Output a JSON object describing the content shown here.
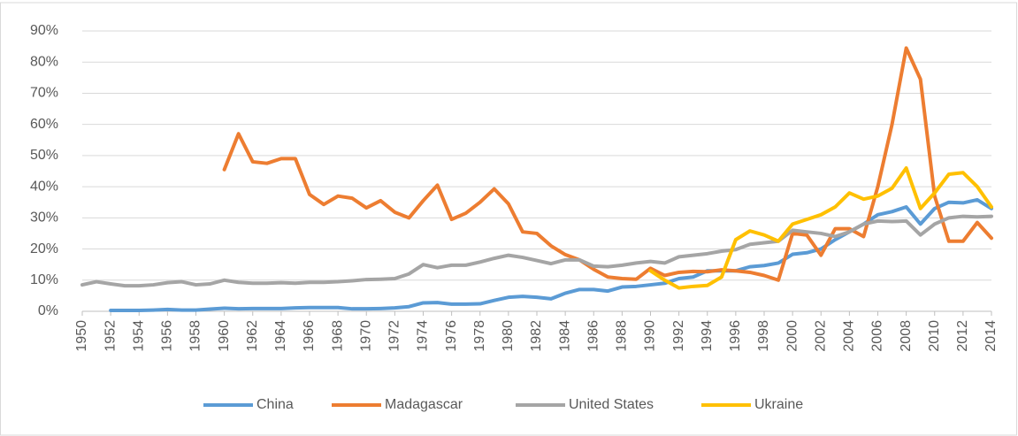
{
  "chart_data": {
    "type": "line",
    "x": [
      1950,
      1951,
      1952,
      1953,
      1954,
      1955,
      1956,
      1957,
      1958,
      1959,
      1960,
      1961,
      1962,
      1963,
      1964,
      1965,
      1966,
      1967,
      1968,
      1969,
      1970,
      1971,
      1972,
      1973,
      1974,
      1975,
      1976,
      1977,
      1978,
      1979,
      1980,
      1981,
      1982,
      1983,
      1984,
      1985,
      1986,
      1987,
      1988,
      1989,
      1990,
      1991,
      1992,
      1993,
      1994,
      1995,
      1996,
      1997,
      1998,
      1999,
      2000,
      2001,
      2002,
      2003,
      2004,
      2005,
      2006,
      2007,
      2008,
      2009,
      2010,
      2011,
      2012,
      2013,
      2014
    ],
    "xlim": [
      1950,
      2014
    ],
    "xticks": [
      1950,
      1952,
      1954,
      1956,
      1958,
      1960,
      1962,
      1964,
      1966,
      1968,
      1970,
      1972,
      1974,
      1976,
      1978,
      1980,
      1982,
      1984,
      1986,
      1988,
      1990,
      1992,
      1994,
      1996,
      1998,
      2000,
      2002,
      2004,
      2006,
      2008,
      2010,
      2012,
      2014
    ],
    "ylim": [
      0,
      90
    ],
    "yticks": [
      {
        "value": 0,
        "label": "0%"
      },
      {
        "value": 10,
        "label": "10%"
      },
      {
        "value": 20,
        "label": "20%"
      },
      {
        "value": 30,
        "label": "30%"
      },
      {
        "value": 40,
        "label": "40%"
      },
      {
        "value": 50,
        "label": "50%"
      },
      {
        "value": 60,
        "label": "60%"
      },
      {
        "value": 70,
        "label": "70%"
      },
      {
        "value": 80,
        "label": "80%"
      },
      {
        "value": 90,
        "label": "90%"
      }
    ],
    "grid": true,
    "legend": "bottom",
    "series": [
      {
        "name": "China",
        "color": "#5b9bd5",
        "values": [
          null,
          null,
          0.3,
          0.3,
          0.3,
          0.4,
          0.6,
          0.4,
          0.4,
          0.7,
          1,
          0.8,
          0.9,
          0.9,
          0.9,
          1.1,
          1.2,
          1.2,
          1.2,
          0.8,
          0.8,
          0.9,
          1.1,
          1.5,
          2.7,
          2.8,
          2.3,
          2.3,
          2.4,
          3.5,
          4.5,
          4.8,
          4.5,
          4,
          5.8,
          7,
          7,
          6.5,
          7.8,
          8,
          8.5,
          9,
          10.5,
          11,
          13,
          13,
          13,
          14.3,
          14.7,
          15.5,
          18.3,
          18.8,
          20,
          23,
          25.5,
          28,
          31,
          32,
          33.5,
          28,
          33,
          35,
          34.8,
          35.8,
          33
        ]
      },
      {
        "name": "Madagascar",
        "color": "#ed7d31",
        "values": [
          null,
          null,
          null,
          null,
          null,
          null,
          null,
          null,
          null,
          null,
          45.5,
          57,
          48,
          47.5,
          49,
          49,
          37.5,
          34.3,
          37,
          36.3,
          33.2,
          35.5,
          31.8,
          30,
          35.5,
          40.5,
          29.5,
          31.5,
          35,
          39.3,
          34.5,
          25.5,
          25,
          21,
          18.2,
          16.5,
          13.5,
          11,
          10.5,
          10.3,
          13.8,
          11.5,
          12.5,
          12.8,
          12.7,
          13.3,
          13,
          12.5,
          11.5,
          10,
          25,
          24.5,
          18,
          26.5,
          26.5,
          24,
          40,
          60,
          84.5,
          74.5,
          37,
          22.5,
          22.5,
          28.5,
          23.5
        ]
      },
      {
        "name": "United States",
        "color": "#a5a5a5",
        "values": [
          8.5,
          9.5,
          8.8,
          8.2,
          8.2,
          8.5,
          9.2,
          9.5,
          8.5,
          8.8,
          10,
          9.3,
          9,
          9,
          9.2,
          9,
          9.3,
          9.3,
          9.5,
          9.8,
          10.2,
          10.3,
          10.5,
          12,
          15,
          14,
          14.8,
          14.8,
          15.8,
          17,
          18,
          17.3,
          16.3,
          15.3,
          16.5,
          16.5,
          14.5,
          14.3,
          14.8,
          15.5,
          16,
          15.5,
          17.5,
          18,
          18.5,
          19.3,
          19.8,
          21.5,
          22,
          22.5,
          26,
          25.5,
          25,
          24,
          25.5,
          28,
          29,
          28.8,
          29,
          24.5,
          28,
          30,
          30.5,
          30.3,
          30.5
        ]
      },
      {
        "name": "Ukraine",
        "color": "#ffc000",
        "values": [
          null,
          null,
          null,
          null,
          null,
          null,
          null,
          null,
          null,
          null,
          null,
          null,
          null,
          null,
          null,
          null,
          null,
          null,
          null,
          null,
          null,
          null,
          null,
          null,
          null,
          null,
          null,
          null,
          null,
          null,
          null,
          null,
          null,
          null,
          null,
          null,
          null,
          null,
          null,
          null,
          13,
          10,
          7.5,
          8,
          8.3,
          11,
          23,
          25.8,
          24.5,
          22.5,
          28,
          29.5,
          31,
          33.5,
          38,
          36,
          37,
          39.5,
          46,
          33,
          38,
          44,
          44.5,
          40,
          33.5
        ]
      }
    ]
  }
}
